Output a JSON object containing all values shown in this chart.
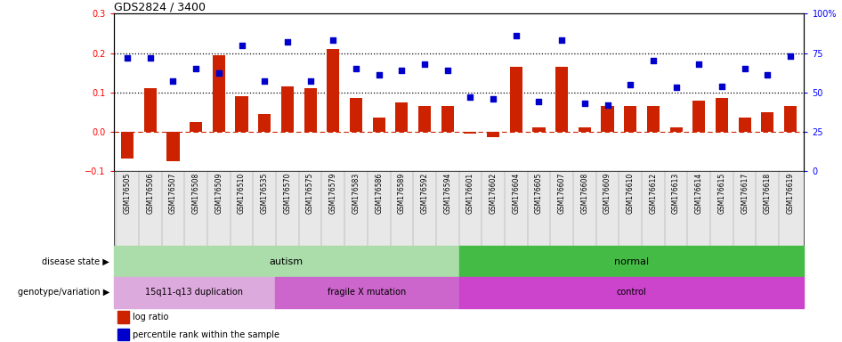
{
  "title": "GDS2824 / 3400",
  "samples": [
    "GSM176505",
    "GSM176506",
    "GSM176507",
    "GSM176508",
    "GSM176509",
    "GSM176510",
    "GSM176535",
    "GSM176570",
    "GSM176575",
    "GSM176579",
    "GSM176583",
    "GSM176586",
    "GSM176589",
    "GSM176592",
    "GSM176594",
    "GSM176601",
    "GSM176602",
    "GSM176604",
    "GSM176605",
    "GSM176607",
    "GSM176608",
    "GSM176609",
    "GSM176610",
    "GSM176612",
    "GSM176613",
    "GSM176614",
    "GSM176615",
    "GSM176617",
    "GSM176618",
    "GSM176619"
  ],
  "log_ratio": [
    -0.068,
    0.11,
    -0.075,
    0.025,
    0.195,
    0.09,
    0.045,
    0.115,
    0.11,
    0.21,
    0.085,
    0.035,
    0.075,
    0.065,
    0.065,
    -0.005,
    -0.015,
    0.165,
    0.01,
    0.165,
    0.01,
    0.065,
    0.065,
    0.065,
    0.01,
    0.08,
    0.085,
    0.035,
    0.05,
    0.065
  ],
  "percentile": [
    72,
    72,
    57,
    65,
    62,
    80,
    57,
    82,
    57,
    83,
    65,
    61,
    64,
    68,
    64,
    47,
    46,
    86,
    44,
    83,
    43,
    42,
    55,
    70,
    53,
    68,
    54,
    65,
    61,
    73
  ],
  "bar_color": "#cc2200",
  "dot_color": "#0000cc",
  "left_ylim": [
    -0.1,
    0.3
  ],
  "right_ylim": [
    0,
    100
  ],
  "left_yticks": [
    -0.1,
    0.0,
    0.1,
    0.2,
    0.3
  ],
  "right_yticks": [
    0,
    25,
    50,
    75,
    100
  ],
  "right_yticklabels": [
    "0",
    "25",
    "50",
    "75",
    "100%"
  ],
  "hlines": [
    0.1,
    0.2
  ],
  "hline_zero_color": "#cc2200",
  "disease_state": {
    "autism": {
      "start": 0,
      "end": 15,
      "color": "#aaddaa",
      "label": "autism"
    },
    "normal": {
      "start": 15,
      "end": 30,
      "color": "#44bb44",
      "label": "normal"
    }
  },
  "genotype": {
    "15q11": {
      "start": 0,
      "end": 7,
      "color": "#ddaadd",
      "label": "15q11-q13 duplication"
    },
    "fragile": {
      "start": 7,
      "end": 15,
      "color": "#cc66cc",
      "label": "fragile X mutation"
    },
    "control": {
      "start": 15,
      "end": 30,
      "color": "#cc44cc",
      "label": "control"
    }
  },
  "legend_items": [
    {
      "label": "log ratio",
      "color": "#cc2200"
    },
    {
      "label": "percentile rank within the sample",
      "color": "#0000cc"
    }
  ],
  "left_label_disease": "disease state",
  "left_label_genotype": "genotype/variation"
}
